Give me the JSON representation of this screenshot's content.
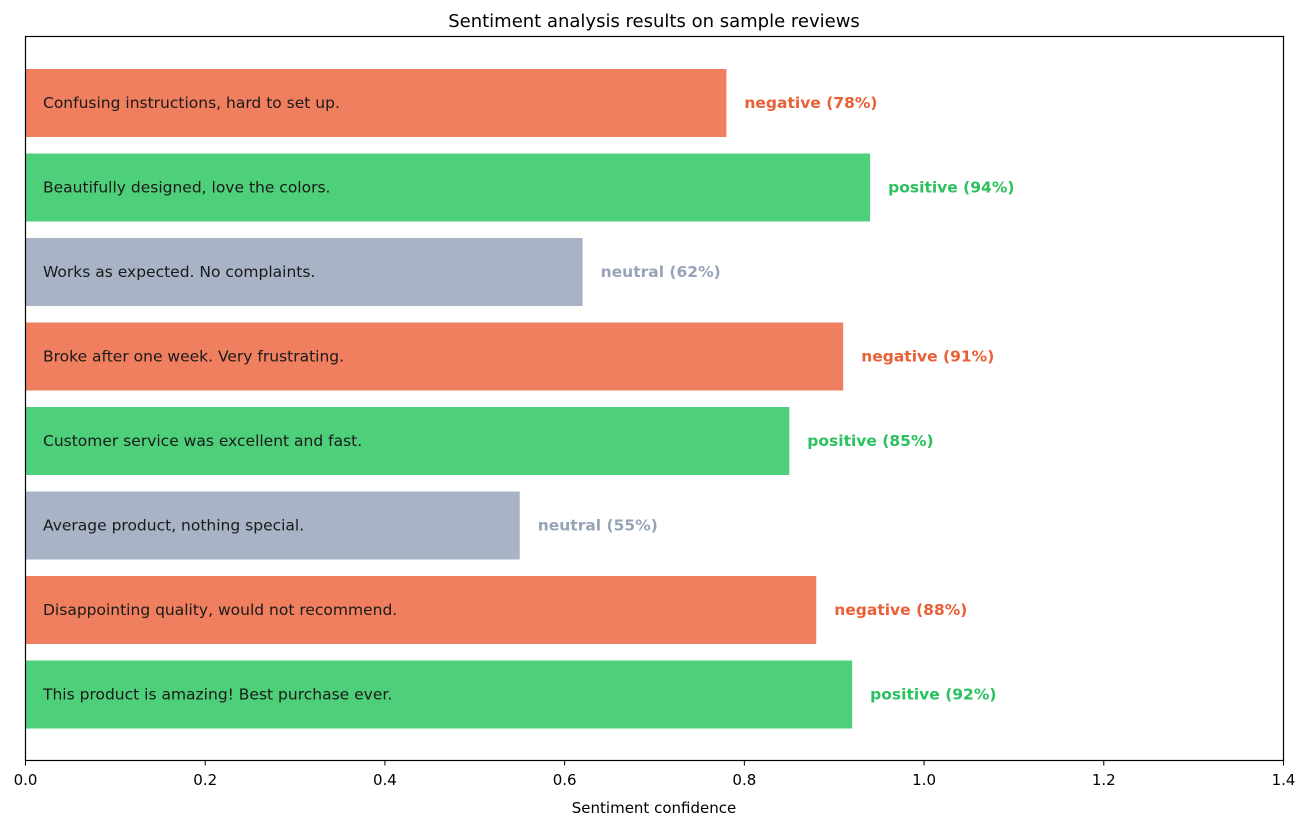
{
  "chart_data": {
    "type": "bar",
    "orientation": "horizontal",
    "title": "Sentiment analysis results on sample reviews",
    "xlabel": "Sentiment confidence",
    "ylabel": "",
    "xlim": [
      0,
      1.4
    ],
    "xticks": [
      "0.0",
      "0.2",
      "0.4",
      "0.6",
      "0.8",
      "1.0",
      "1.2",
      "1.4"
    ],
    "grid": false,
    "colors": {
      "positive": {
        "bar": "#4ecf7a",
        "label": "#2bc15f"
      },
      "negative": {
        "bar": "#ef7f5e",
        "label": "#ea5f35"
      },
      "neutral": {
        "bar": "#a8b3c6",
        "label": "#97a4b8"
      }
    },
    "bars": [
      {
        "text": "This product is amazing! Best purchase ever.",
        "sentiment": "positive",
        "value": 0.92,
        "label": "positive (92%)"
      },
      {
        "text": "Disappointing quality, would not recommend.",
        "sentiment": "negative",
        "value": 0.88,
        "label": "negative (88%)"
      },
      {
        "text": "Average product, nothing special.",
        "sentiment": "neutral",
        "value": 0.55,
        "label": "neutral (55%)"
      },
      {
        "text": "Customer service was excellent and fast.",
        "sentiment": "positive",
        "value": 0.85,
        "label": "positive (85%)"
      },
      {
        "text": "Broke after one week. Very frustrating.",
        "sentiment": "negative",
        "value": 0.91,
        "label": "negative (91%)"
      },
      {
        "text": "Works as expected. No complaints.",
        "sentiment": "neutral",
        "value": 0.62,
        "label": "neutral (62%)"
      },
      {
        "text": "Beautifully designed, love the colors.",
        "sentiment": "positive",
        "value": 0.94,
        "label": "positive (94%)"
      },
      {
        "text": "Confusing instructions, hard to set up.",
        "sentiment": "negative",
        "value": 0.78,
        "label": "negative (78%)"
      }
    ]
  }
}
